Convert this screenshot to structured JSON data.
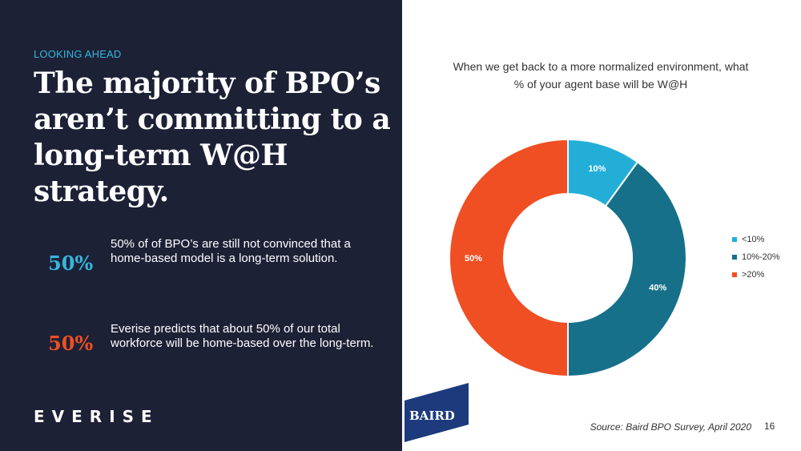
{
  "left_panel": {
    "eyebrow": "LOOKING AHEAD",
    "headline": "The majority of BPO’s aren’t committing to a long-term W@H strategy.",
    "stats": [
      {
        "value": "50%",
        "text": "50% of of BPO’s are still not convinced that a home-based model is a long-term solution.",
        "color": "#36b6dd"
      },
      {
        "value": "50%",
        "text": "Everise predicts that about 50% of our total workforce will be home-based over the long-term.",
        "color": "#f04e23"
      }
    ],
    "logo": "EVERISE"
  },
  "chart_data": {
    "type": "pie",
    "title": "When we get back to a more normalized environment, what % of your agent base  will be W@H",
    "categories": [
      "<10%",
      "10%-20%",
      ">20%"
    ],
    "values": [
      10,
      40,
      50
    ],
    "labels": [
      "10%",
      "40%",
      "50%"
    ],
    "colors": [
      "#23aed7",
      "#167089",
      "#f04e23"
    ],
    "donut": true,
    "legend_position": "right"
  },
  "footer": {
    "baird_logo": "BAIRD",
    "source": "Source: Baird BPO Survey, April 2020",
    "page_number": "16"
  }
}
